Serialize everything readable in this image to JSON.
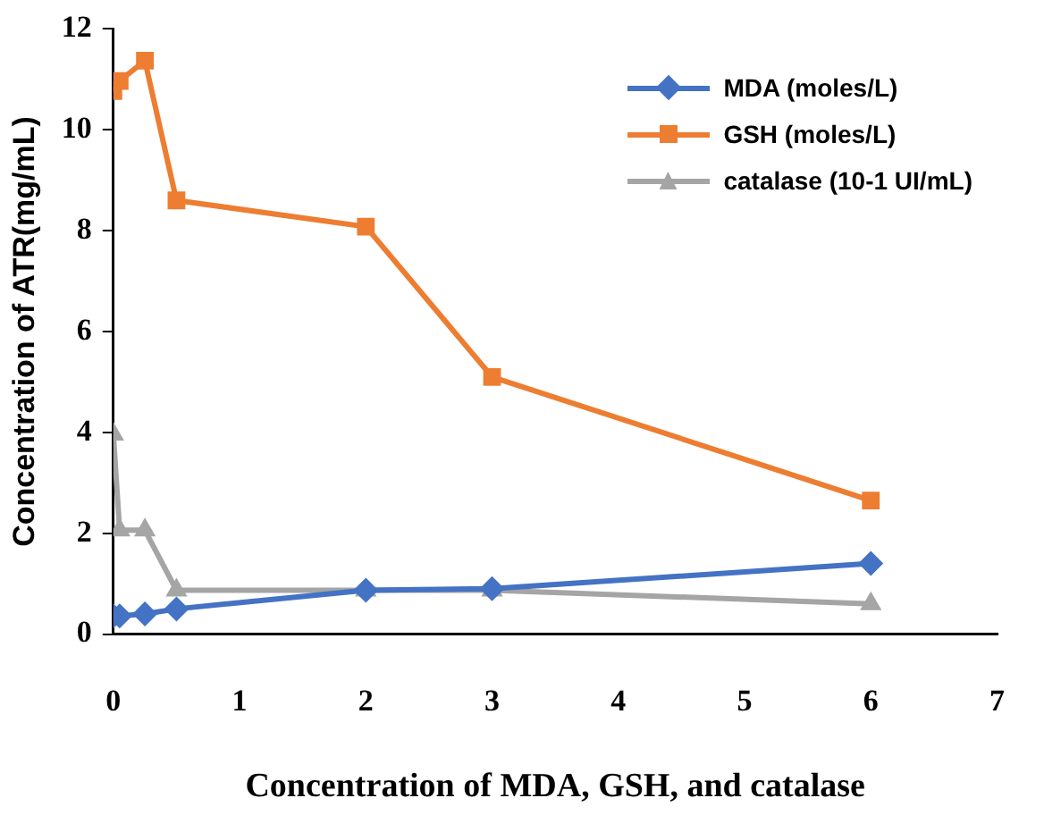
{
  "chart_data": {
    "type": "line",
    "xlabel": "Concentration of MDA, GSH, and catalase",
    "ylabel": "Concentration of ATR(mg/mL)",
    "xlim": [
      0,
      7
    ],
    "xticks": [
      0,
      1,
      2,
      3,
      4,
      5,
      6,
      7
    ],
    "ylim": [
      0,
      12
    ],
    "yticks": [
      0,
      2,
      4,
      6,
      8,
      10,
      12
    ],
    "x": [
      0,
      0.05,
      0.25,
      0.5,
      2,
      3,
      6
    ],
    "series": [
      {
        "name": "MDA (moles/L)",
        "color": "#4472c4",
        "marker": "diamond",
        "values": [
          0.36,
          0.36,
          0.4,
          0.5,
          0.87,
          0.9,
          1.4
        ]
      },
      {
        "name": "GSH (moles/L)",
        "color": "#ed7d31",
        "marker": "square",
        "values": [
          10.77,
          10.97,
          11.37,
          8.6,
          8.08,
          5.1,
          2.65
        ]
      },
      {
        "name": "catalase (10-1 UI/mL)",
        "color": "#a5a5a5",
        "marker": "triangle",
        "values": [
          3.96,
          2.06,
          2.06,
          0.87,
          0.87,
          0.87,
          0.6
        ]
      }
    ],
    "grid": false,
    "legend": "top right",
    "line_style": "solid"
  }
}
